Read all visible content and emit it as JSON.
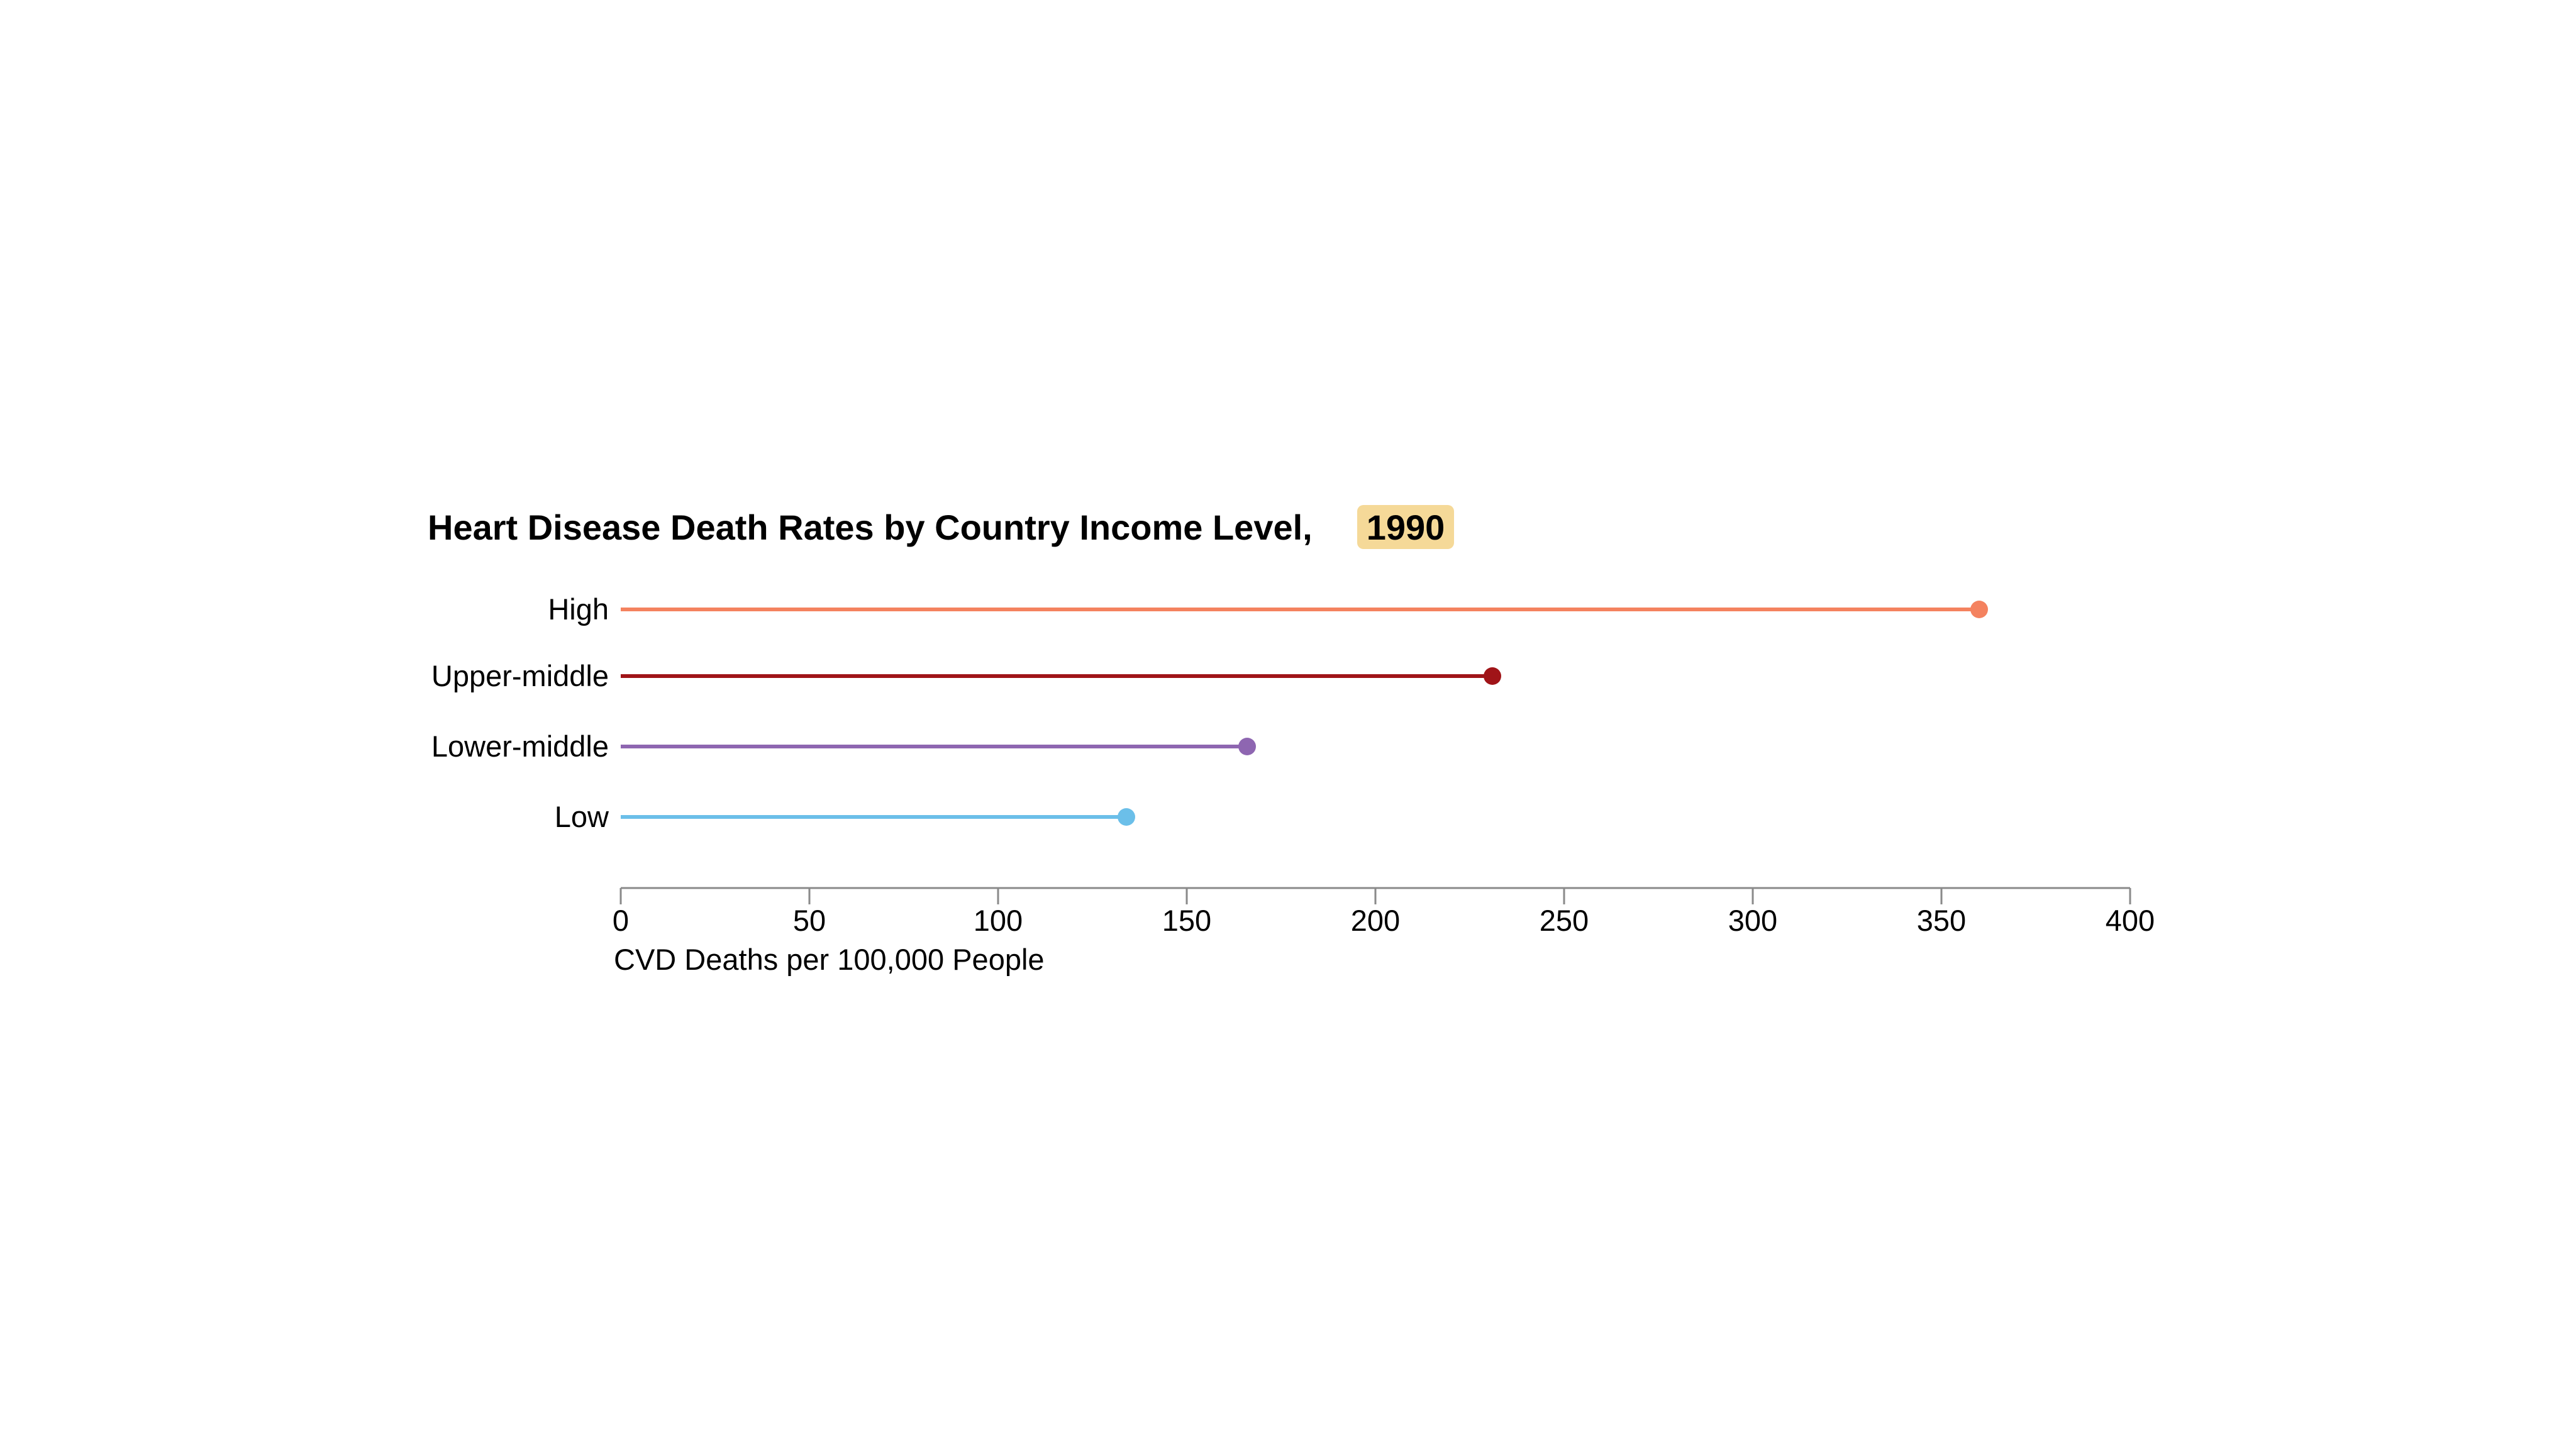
{
  "chart_data": {
    "type": "bar",
    "style": "lollipop",
    "orientation": "horizontal",
    "title": "Heart Disease Death Rates by Country Income Level,",
    "year_badge": "1990",
    "year_badge_color": "#f5d998",
    "categories": [
      "High",
      "Upper-middle",
      "Lower-middle",
      "Low"
    ],
    "values": [
      360,
      231,
      166,
      134
    ],
    "colors": [
      "#f4825f",
      "#a01418",
      "#8e66b1",
      "#6bbfe9"
    ],
    "xlabel": "CVD Deaths per 100,000 People",
    "ylabel": "",
    "xlim": [
      0,
      400
    ],
    "xticks": [
      0,
      50,
      100,
      150,
      200,
      250,
      300,
      350,
      400
    ],
    "grid": false,
    "legend": "none"
  }
}
